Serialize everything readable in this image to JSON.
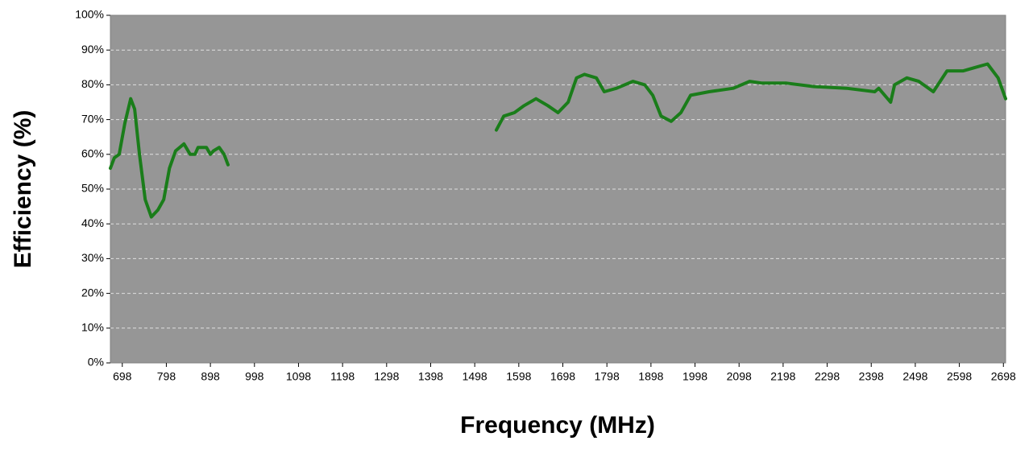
{
  "chart_data": {
    "type": "line",
    "xlabel": "Frequency (MHz)",
    "ylabel": "Efficiency (%)",
    "xlim": [
      671,
      2703
    ],
    "ylim": [
      0,
      100
    ],
    "xticks": [
      698,
      798,
      898,
      998,
      1098,
      1198,
      1298,
      1398,
      1498,
      1598,
      1698,
      1798,
      1898,
      1998,
      2098,
      2198,
      2298,
      2398,
      2498,
      2598,
      2698
    ],
    "yticks": [
      {
        "value": 0,
        "label": "0%"
      },
      {
        "value": 10,
        "label": "10%"
      },
      {
        "value": 20,
        "label": "20%"
      },
      {
        "value": 30,
        "label": "30%"
      },
      {
        "value": 40,
        "label": "40%"
      },
      {
        "value": 50,
        "label": "50%"
      },
      {
        "value": 60,
        "label": "60%"
      },
      {
        "value": 70,
        "label": "70%"
      },
      {
        "value": 80,
        "label": "80%"
      },
      {
        "value": 90,
        "label": "90%"
      },
      {
        "value": 100,
        "label": "100%"
      }
    ],
    "grid": true,
    "x": [
      671,
      680,
      691,
      704,
      717,
      726,
      737,
      750,
      764,
      779,
      792,
      805,
      819,
      838,
      852,
      863,
      870,
      889,
      898,
      905,
      918,
      929,
      938,
      null,
      1547,
      1564,
      1588,
      1610,
      1637,
      1664,
      1687,
      1710,
      1729,
      1747,
      1774,
      1792,
      1820,
      1857,
      1884,
      1902,
      1921,
      1944,
      1966,
      1988,
      2030,
      2085,
      2122,
      2149,
      2204,
      2268,
      2342,
      2406,
      2415,
      2442,
      2451,
      2479,
      2506,
      2539,
      2570,
      2607,
      2634,
      2662,
      2686,
      2703
    ],
    "series": [
      {
        "color": "#1a7d1a",
        "values": [
          56,
          59,
          60,
          69,
          76,
          73,
          60,
          47,
          42,
          44,
          47,
          56,
          61,
          63,
          60,
          60,
          62,
          62,
          60,
          61,
          62,
          60,
          57,
          null,
          67,
          71,
          72,
          74,
          76,
          74,
          72,
          75,
          82,
          83,
          82,
          78,
          79,
          81,
          80,
          77,
          71,
          69.5,
          72,
          77,
          78,
          79,
          81,
          80.5,
          80.5,
          79.5,
          79,
          78,
          79,
          75,
          80,
          82,
          81,
          78,
          84,
          84,
          85,
          86,
          82,
          76
        ]
      }
    ]
  }
}
